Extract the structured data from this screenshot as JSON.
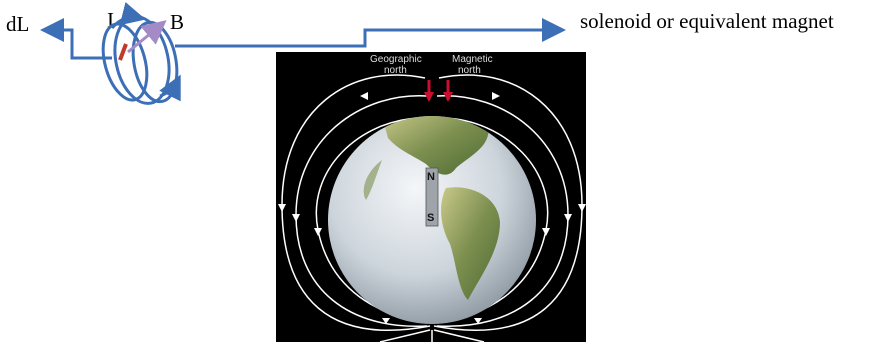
{
  "labels": {
    "dl": "dL",
    "current": "I",
    "field": "B",
    "description": "solenoid or equivalent magnet"
  },
  "earth": {
    "geographic_north": [
      "Geographic",
      "north"
    ],
    "magnetic_north": [
      "Magnetic",
      "north"
    ],
    "magnet_north": "N",
    "magnet_south": "S"
  },
  "colors": {
    "arrow_blue": "#3d6fb6",
    "field_vector": "#a48bc6",
    "current_segment": "#c0392b",
    "pole_arrow_red": "#c8102e"
  }
}
